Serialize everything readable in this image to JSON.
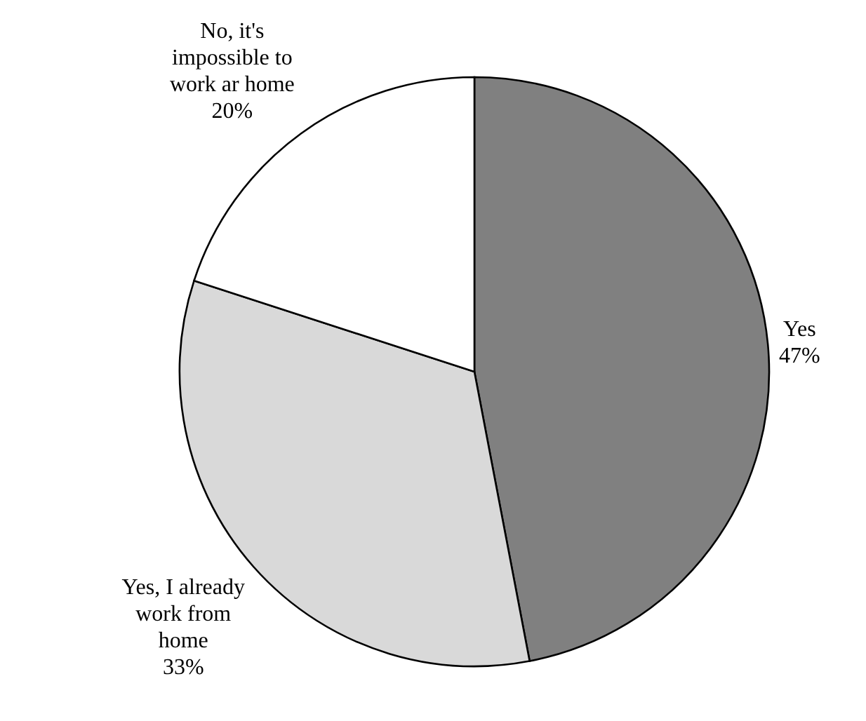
{
  "chart_data": {
    "type": "pie",
    "categories": [
      "Yes",
      "Yes, I already work from home",
      "No, it's impossible to work ar home"
    ],
    "values": [
      47,
      33,
      20
    ],
    "colors": [
      "#808080",
      "#d9d9d9",
      "#ffffff"
    ],
    "value_labels": [
      "47%",
      "33%",
      "20%"
    ]
  }
}
